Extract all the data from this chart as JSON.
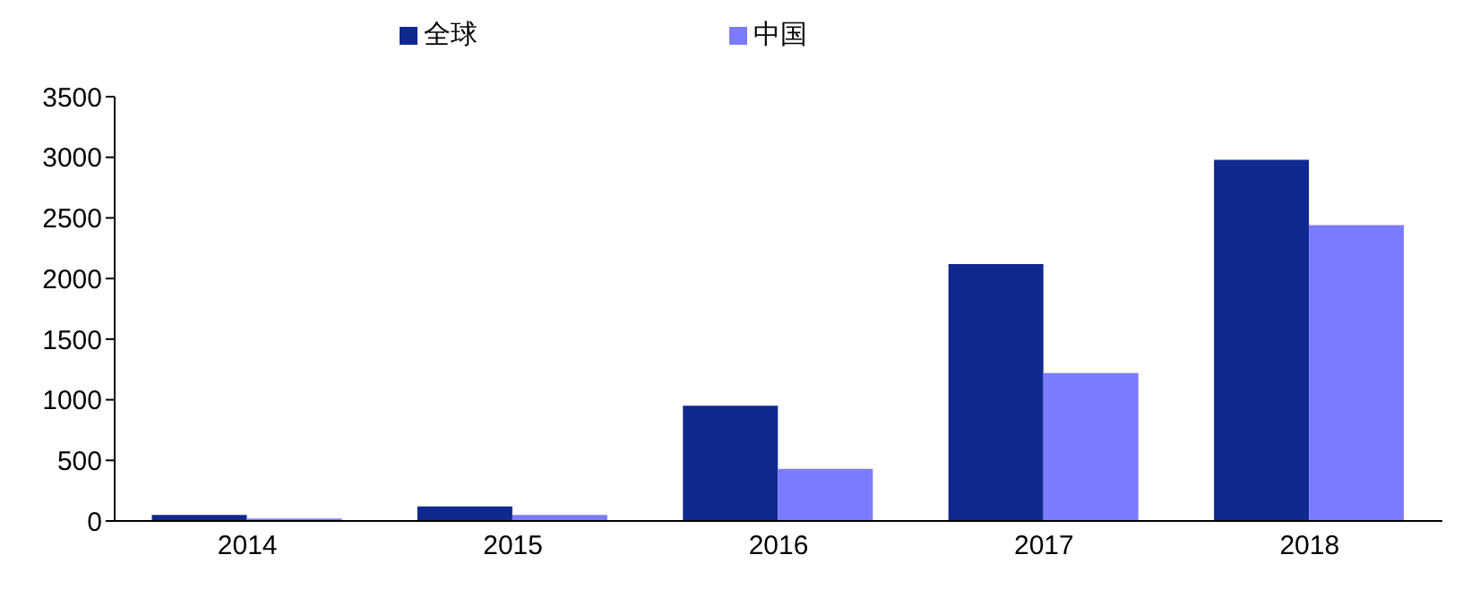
{
  "chart_data": {
    "type": "bar",
    "categories": [
      "2014",
      "2015",
      "2016",
      "2017",
      "2018"
    ],
    "series": [
      {
        "name": "全球",
        "color": "#10298f",
        "values": [
          50,
          120,
          950,
          2120,
          2980
        ]
      },
      {
        "name": "中国",
        "color": "#7b7bff",
        "values": [
          20,
          50,
          430,
          1220,
          2440
        ]
      }
    ],
    "ylim": [
      0,
      3500
    ],
    "yticks": [
      0,
      500,
      1000,
      1500,
      2000,
      2500,
      3000,
      3500
    ],
    "grid": false,
    "legend": "top"
  }
}
